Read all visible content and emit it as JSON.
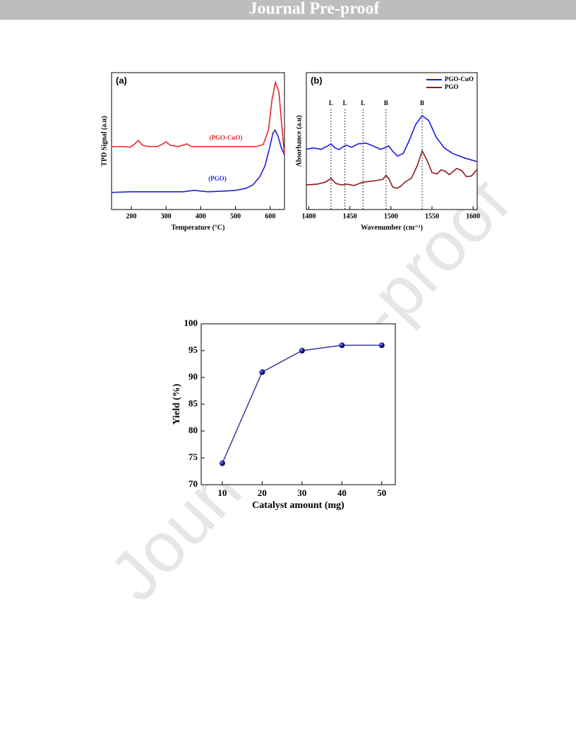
{
  "header": {
    "title": "Journal Pre-proof"
  },
  "watermark": "Journal Pre-proof",
  "chart_data": [
    {
      "type": "line",
      "panel": "(a)",
      "x_label": "Temperature (°C)",
      "y_label": "TPD Signal (a.u)",
      "xlim": [
        143,
        641
      ],
      "xticks": [
        200,
        300,
        400,
        500,
        600
      ],
      "ylim": [
        0,
        100
      ],
      "legend": "none",
      "series": [
        {
          "name": "(PGO-CuO)",
          "color": "#e8262a",
          "x": [
            143,
            180,
            195,
            208,
            220,
            232,
            250,
            275,
            288,
            300,
            312,
            335,
            348,
            360,
            372,
            400,
            450,
            500,
            560,
            580,
            595,
            605,
            615,
            625,
            632,
            641
          ],
          "values": [
            46,
            46,
            45.5,
            47.5,
            50.5,
            47,
            46,
            46,
            47.5,
            49.5,
            47,
            46,
            47,
            48,
            46,
            46,
            46,
            46,
            46,
            47.5,
            58,
            80,
            93,
            86,
            65,
            40
          ]
        },
        {
          "name": "(PGO)",
          "color": "#1f1fd6",
          "x": [
            143,
            200,
            300,
            350,
            380,
            420,
            470,
            500,
            530,
            550,
            570,
            585,
            598,
            608,
            614,
            622,
            632,
            641
          ],
          "values": [
            12.5,
            13,
            13,
            13,
            14,
            13,
            13.5,
            14,
            15.5,
            18,
            24,
            32,
            45,
            56,
            58,
            54,
            45,
            40
          ]
        }
      ]
    },
    {
      "type": "line",
      "panel": "(b)",
      "x_label": "Wavenumber (cm⁻¹)",
      "y_label": "Absorbance (a.u)",
      "xlim": [
        1397,
        1605
      ],
      "xticks": [
        1400,
        1450,
        1500,
        1550,
        1600
      ],
      "ylim": [
        0,
        100
      ],
      "legend": "upper right",
      "reference_lines": [
        {
          "x": 1427,
          "label": "L"
        },
        {
          "x": 1444,
          "label": "L"
        },
        {
          "x": 1466,
          "label": "L"
        },
        {
          "x": 1494,
          "label": "B"
        },
        {
          "x": 1538,
          "label": "B"
        }
      ],
      "series": [
        {
          "name": "PGO-CuO",
          "color": "#1a1ae0",
          "x": [
            1397,
            1405,
            1415,
            1423,
            1427,
            1432,
            1437,
            1442,
            1446,
            1452,
            1460,
            1470,
            1480,
            1487,
            1492,
            1497,
            1503,
            1508,
            1515,
            1522,
            1530,
            1538,
            1546,
            1555,
            1565,
            1575,
            1590,
            1605
          ],
          "values": [
            44,
            45,
            44,
            46.5,
            48,
            45,
            43.8,
            46,
            47,
            45.5,
            48,
            48.5,
            46,
            44,
            45,
            46.5,
            42,
            39,
            41,
            50,
            62,
            68.6,
            65,
            53,
            45,
            41,
            37.6,
            35
          ]
        },
        {
          "name": "PGO",
          "color": "#8b1a1a",
          "x": [
            1397,
            1410,
            1420,
            1427,
            1433,
            1440,
            1447,
            1455,
            1466,
            1480,
            1490,
            1494,
            1498,
            1502,
            1507,
            1512,
            1517,
            1525,
            1532,
            1538,
            1544,
            1550,
            1556,
            1561,
            1566,
            1571,
            1580,
            1586,
            1592,
            1598,
            1605
          ],
          "values": [
            18,
            18.5,
            20,
            22.7,
            19,
            18,
            18.5,
            17.5,
            20,
            21,
            22,
            25,
            22,
            16.5,
            15.5,
            17,
            20,
            23,
            32,
            42.8,
            36,
            27,
            26,
            29,
            28,
            25.5,
            30,
            28.5,
            24,
            24.5,
            29.4
          ]
        }
      ]
    },
    {
      "type": "line",
      "x_label": "Catalyst amount (mg)",
      "y_label": "Yield (%)",
      "x": [
        10,
        20,
        30,
        40,
        50
      ],
      "values": [
        74,
        91,
        95,
        96,
        96
      ],
      "color": "#3b3ba0",
      "marker": "circle",
      "xlim": [
        4.7,
        53.4
      ],
      "ylim": [
        70,
        100
      ],
      "xticks": [
        10,
        20,
        30,
        40,
        50
      ],
      "yticks": [
        70,
        75,
        80,
        85,
        90,
        95,
        100
      ],
      "legend": "none"
    }
  ]
}
